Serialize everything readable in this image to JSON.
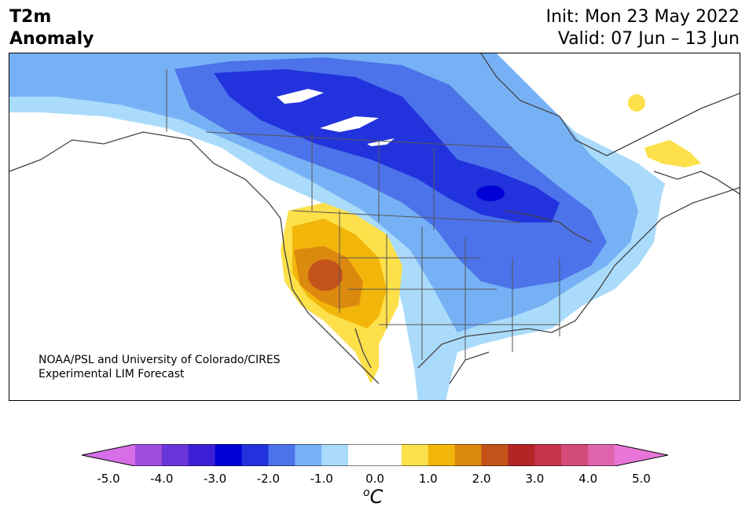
{
  "title": {
    "variable_line1": "T2m",
    "variable_line2": "Anomaly",
    "init_label": "Init: Mon 23 May 2022",
    "valid_label": "Valid: 07 Jun – 13 Jun"
  },
  "credit": {
    "line1": "NOAA/PSL and University of Colorado/CIRES",
    "line2": "Experimental LIM Forecast"
  },
  "colorbar": {
    "unit_super": "o",
    "unit_main": "C",
    "ticks": [
      "-5.0",
      "-4.0",
      "-3.0",
      "-2.0",
      "-1.0",
      "0.0",
      "1.0",
      "2.0",
      "3.0",
      "4.0",
      "5.0"
    ],
    "colors": [
      "#d66ee8",
      "#9f4fdc",
      "#6a35d8",
      "#3a1fd4",
      "#0000d6",
      "#2233dd",
      "#4c73ea",
      "#77b1f5",
      "#aadbfb",
      "#ffffff",
      "#ffffff",
      "#fde04a",
      "#f2b60a",
      "#dc890f",
      "#c4521b",
      "#b12525",
      "#c4354c",
      "#d24b7a",
      "#df64ad",
      "#e876d9"
    ]
  },
  "palette": {
    "light_blue": "#aadbfb",
    "mid_blue": "#77b1f5",
    "blue": "#4c73ea",
    "deep_blue": "#2233dd",
    "darkest_blue": "#0000d6",
    "yellow": "#fde04a",
    "gold": "#f2b60a",
    "orange": "#dc890f",
    "dark_orange": "#c4521b"
  }
}
